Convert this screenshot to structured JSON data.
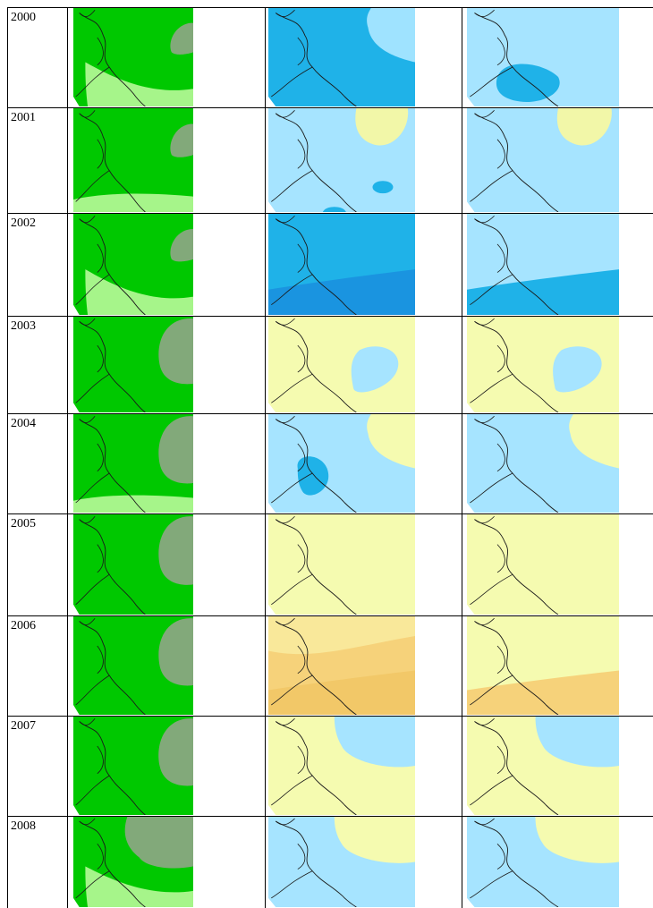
{
  "rows": [
    {
      "year": "2000",
      "maps": [
        {
          "bg": "#00c800",
          "patches": [
            {
              "shape": "blob-right-small",
              "color": "#82a97a"
            },
            {
              "shape": "band-bottom-left",
              "color": "#a6f58a"
            }
          ]
        },
        {
          "bg": "#1fb2e8",
          "patches": [
            {
              "shape": "blob-top-right",
              "color": "#9fe3ff"
            }
          ]
        },
        {
          "bg": "#a6e4ff",
          "patches": [
            {
              "shape": "blob-bottom-center",
              "color": "#1fb2e8"
            }
          ]
        }
      ]
    },
    {
      "year": "2001",
      "maps": [
        {
          "bg": "#00c800",
          "patches": [
            {
              "shape": "blob-right-small",
              "color": "#82a97a"
            },
            {
              "shape": "band-bottom",
              "color": "#a6f58a"
            }
          ]
        },
        {
          "bg": "#a6e4ff",
          "patches": [
            {
              "shape": "blob-top-right-small",
              "color": "#f2f7a8"
            },
            {
              "shape": "dots",
              "color": "#1fb2e8"
            }
          ]
        },
        {
          "bg": "#a6e4ff",
          "patches": [
            {
              "shape": "blob-top-right-small",
              "color": "#f2f7a8"
            }
          ]
        }
      ]
    },
    {
      "year": "2002",
      "maps": [
        {
          "bg": "#00c800",
          "patches": [
            {
              "shape": "blob-right-small",
              "color": "#82a97a"
            },
            {
              "shape": "band-bottom-left",
              "color": "#a6f58a"
            }
          ]
        },
        {
          "bg": "#1fb2e8",
          "patches": [
            {
              "shape": "band-bottom-wide",
              "color": "#1a94e0"
            }
          ]
        },
        {
          "bg": "#a6e4ff",
          "patches": [
            {
              "shape": "band-bottom-wide",
              "color": "#1fb2e8"
            }
          ]
        }
      ]
    },
    {
      "year": "2003",
      "maps": [
        {
          "bg": "#00c800",
          "patches": [
            {
              "shape": "blob-right-large",
              "color": "#82a97a"
            }
          ]
        },
        {
          "bg": "#f5fbb0",
          "patches": [
            {
              "shape": "blob-center-right",
              "color": "#a6e4ff"
            }
          ]
        },
        {
          "bg": "#f5fbb0",
          "patches": [
            {
              "shape": "blob-center-right",
              "color": "#a6e4ff"
            }
          ]
        }
      ]
    },
    {
      "year": "2004",
      "maps": [
        {
          "bg": "#00c800",
          "patches": [
            {
              "shape": "blob-right-large",
              "color": "#82a97a"
            },
            {
              "shape": "band-bottom",
              "color": "#a6f58a"
            }
          ]
        },
        {
          "bg": "#a6e4ff",
          "patches": [
            {
              "shape": "blob-top-right",
              "color": "#f5fbb0"
            },
            {
              "shape": "blob-left-oval",
              "color": "#1fb2e8"
            }
          ]
        },
        {
          "bg": "#a6e4ff",
          "patches": [
            {
              "shape": "blob-top-right",
              "color": "#f5fbb0"
            }
          ]
        }
      ]
    },
    {
      "year": "2005",
      "maps": [
        {
          "bg": "#00c800",
          "patches": [
            {
              "shape": "blob-right-large",
              "color": "#82a97a"
            }
          ]
        },
        {
          "bg": "#f5fbb0",
          "patches": []
        },
        {
          "bg": "#f5fbb0",
          "patches": []
        }
      ]
    },
    {
      "year": "2006",
      "maps": [
        {
          "bg": "#00c800",
          "patches": [
            {
              "shape": "blob-right-large",
              "color": "#82a97a"
            }
          ]
        },
        {
          "bg": "#f9e89a",
          "patches": [
            {
              "shape": "band-lower-orange",
              "color": "#f6d27a"
            },
            {
              "shape": "band-bottom-wide",
              "color": "#f2c868"
            }
          ]
        },
        {
          "bg": "#f5fbb0",
          "patches": [
            {
              "shape": "band-bottom-wide",
              "color": "#f6d27a"
            }
          ]
        }
      ]
    },
    {
      "year": "2007",
      "maps": [
        {
          "bg": "#00c800",
          "patches": [
            {
              "shape": "blob-right-large",
              "color": "#82a97a"
            }
          ]
        },
        {
          "bg": "#f5fbb0",
          "patches": [
            {
              "shape": "blob-top-right-square",
              "color": "#a6e4ff"
            }
          ]
        },
        {
          "bg": "#f5fbb0",
          "patches": [
            {
              "shape": "blob-top-right-square",
              "color": "#a6e4ff"
            }
          ]
        }
      ]
    },
    {
      "year": "2008",
      "maps": [
        {
          "bg": "#00c800",
          "patches": [
            {
              "shape": "blob-top-right-wide",
              "color": "#82a97a"
            },
            {
              "shape": "band-bottom-left",
              "color": "#a6f58a"
            }
          ]
        },
        {
          "bg": "#a6e4ff",
          "patches": [
            {
              "shape": "blob-top-right-square",
              "color": "#f5fbb0"
            }
          ]
        },
        {
          "bg": "#a6e4ff",
          "patches": [
            {
              "shape": "blob-top-right-square",
              "color": "#f5fbb0"
            }
          ]
        }
      ]
    }
  ]
}
